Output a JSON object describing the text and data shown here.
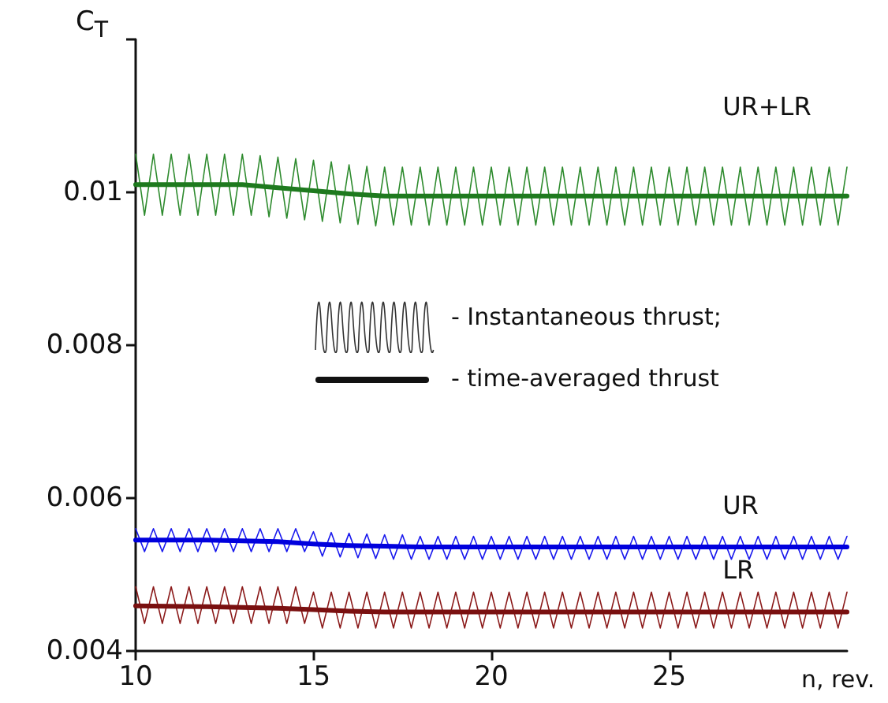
{
  "chart_data": {
    "type": "line",
    "xlabel": "n, rev.",
    "ylabel": "C$_{T}$",
    "xlim": [
      10,
      30
    ],
    "xticks": [
      10,
      15,
      20,
      25
    ],
    "ylim": [
      0.004,
      0.012
    ],
    "yticks": [
      0.004,
      0.006,
      0.008,
      0.01,
      {
        "value": 0.012,
        "label": null
      }
    ],
    "grid": false,
    "legend": false,
    "marker": "none",
    "line_style": "solid",
    "annotations": [
      "- Instantaneous thrust;",
      "- time-averaged thrust"
    ],
    "series": [
      {
        "name": "UR+LR",
        "color": "#2e8b2e",
        "x": [
          10,
          10.25,
          10.5,
          10.75,
          11,
          11.25,
          11.5,
          11.75,
          12,
          12.25,
          12.5,
          12.75,
          13,
          13.25,
          13.5,
          13.75,
          14,
          14.25,
          14.5,
          14.75,
          15,
          15.25,
          15.5,
          15.75,
          16,
          16.25,
          16.5,
          16.75,
          17,
          17.25,
          17.5,
          17.75,
          18,
          18.25,
          18.5,
          18.75,
          19,
          19.25,
          19.5,
          19.75,
          20,
          20.25,
          20.5,
          20.75,
          21,
          21.25,
          21.5,
          21.75,
          22,
          22.25,
          22.5,
          22.75,
          23,
          23.25,
          23.5,
          23.75,
          24,
          24.25,
          24.5,
          24.75,
          25,
          25.25,
          25.5,
          25.75,
          26,
          26.25,
          26.5,
          26.75,
          27,
          27.25,
          27.5,
          27.75,
          28,
          28.25,
          28.5,
          28.75,
          29,
          29.25,
          29.5,
          29.75,
          30
        ],
        "values": [
          0.0105,
          0.0097,
          0.0105,
          0.0097,
          0.0105,
          0.0097,
          0.0105,
          0.0097,
          0.0105,
          0.0097,
          0.0105,
          0.0097,
          0.0105,
          0.0097,
          0.01048,
          0.00968,
          0.01046,
          0.00966,
          0.01044,
          0.00964,
          0.01042,
          0.00962,
          0.0104,
          0.0096,
          0.01036,
          0.00958,
          0.01034,
          0.00956,
          0.01033,
          0.00957,
          0.01033,
          0.00957,
          0.01033,
          0.00957,
          0.01033,
          0.00957,
          0.01033,
          0.00957,
          0.01033,
          0.00957,
          0.01033,
          0.00957,
          0.01033,
          0.00957,
          0.01033,
          0.00957,
          0.01033,
          0.00957,
          0.01033,
          0.00957,
          0.01033,
          0.00957,
          0.01033,
          0.00957,
          0.01033,
          0.00957,
          0.01033,
          0.00957,
          0.01033,
          0.00957,
          0.01033,
          0.00957,
          0.01033,
          0.00957,
          0.01033,
          0.00957,
          0.01033,
          0.00957,
          0.01033,
          0.00957,
          0.01033,
          0.00957,
          0.01033,
          0.00957,
          0.01033,
          0.00957,
          0.01033,
          0.00957,
          0.01033,
          0.00957,
          0.01033
        ]
      },
      {
        "name": "UR",
        "color": "#1a1aee",
        "x": [
          10,
          10.25,
          10.5,
          10.75,
          11,
          11.25,
          11.5,
          11.75,
          12,
          12.25,
          12.5,
          12.75,
          13,
          13.25,
          13.5,
          13.75,
          14,
          14.25,
          14.5,
          14.75,
          15,
          15.25,
          15.5,
          15.75,
          16,
          16.25,
          16.5,
          16.75,
          17,
          17.25,
          17.5,
          17.75,
          18,
          18.25,
          18.5,
          18.75,
          19,
          19.25,
          19.5,
          19.75,
          20,
          20.25,
          20.5,
          20.75,
          21,
          21.25,
          21.5,
          21.75,
          22,
          22.25,
          22.5,
          22.75,
          23,
          23.25,
          23.5,
          23.75,
          24,
          24.25,
          24.5,
          24.75,
          25,
          25.25,
          25.5,
          25.75,
          26,
          26.25,
          26.5,
          26.75,
          27,
          27.25,
          27.5,
          27.75,
          28,
          28.25,
          28.5,
          28.75,
          29,
          29.25,
          29.5,
          29.75,
          30
        ],
        "values": [
          0.0056,
          0.0053,
          0.0056,
          0.0053,
          0.0056,
          0.0053,
          0.0056,
          0.0053,
          0.0056,
          0.0053,
          0.0056,
          0.0053,
          0.0056,
          0.0053,
          0.0056,
          0.0053,
          0.0056,
          0.0053,
          0.0056,
          0.0053,
          0.00556,
          0.00524,
          0.00555,
          0.00523,
          0.00554,
          0.00522,
          0.00553,
          0.00521,
          0.00552,
          0.0052,
          0.00552,
          0.0052,
          0.0055,
          0.0052,
          0.0055,
          0.0052,
          0.0055,
          0.0052,
          0.0055,
          0.0052,
          0.0055,
          0.0052,
          0.0055,
          0.0052,
          0.0055,
          0.0052,
          0.0055,
          0.0052,
          0.0055,
          0.0052,
          0.0055,
          0.0052,
          0.0055,
          0.0052,
          0.0055,
          0.0052,
          0.0055,
          0.0052,
          0.0055,
          0.0052,
          0.0055,
          0.0052,
          0.0055,
          0.0052,
          0.0055,
          0.0052,
          0.0055,
          0.0052,
          0.0055,
          0.0052,
          0.0055,
          0.0052,
          0.0055,
          0.0052,
          0.0055,
          0.0052,
          0.0055,
          0.0052,
          0.0055,
          0.0052,
          0.0055
        ]
      },
      {
        "name": "LR",
        "color": "#8b1a1a",
        "x": [
          10,
          10.25,
          10.5,
          10.75,
          11,
          11.25,
          11.5,
          11.75,
          12,
          12.25,
          12.5,
          12.75,
          13,
          13.25,
          13.5,
          13.75,
          14,
          14.25,
          14.5,
          14.75,
          15,
          15.25,
          15.5,
          15.75,
          16,
          16.25,
          16.5,
          16.75,
          17,
          17.25,
          17.5,
          17.75,
          18,
          18.25,
          18.5,
          18.75,
          19,
          19.25,
          19.5,
          19.75,
          20,
          20.25,
          20.5,
          20.75,
          21,
          21.25,
          21.5,
          21.75,
          22,
          22.25,
          22.5,
          22.75,
          23,
          23.25,
          23.5,
          23.75,
          24,
          24.25,
          24.5,
          24.75,
          25,
          25.25,
          25.5,
          25.75,
          26,
          26.25,
          26.5,
          26.75,
          27,
          27.25,
          27.5,
          27.75,
          28,
          28.25,
          28.5,
          28.75,
          29,
          29.25,
          29.5,
          29.75,
          30
        ],
        "values": [
          0.00484,
          0.00436,
          0.00484,
          0.00436,
          0.00484,
          0.00436,
          0.00484,
          0.00436,
          0.00484,
          0.00436,
          0.00484,
          0.00436,
          0.00484,
          0.00436,
          0.00484,
          0.00436,
          0.00484,
          0.00436,
          0.00484,
          0.00436,
          0.00477,
          0.0043,
          0.00477,
          0.0043,
          0.00477,
          0.0043,
          0.00477,
          0.0043,
          0.00477,
          0.0043,
          0.00477,
          0.0043,
          0.00477,
          0.0043,
          0.00477,
          0.0043,
          0.00477,
          0.0043,
          0.00477,
          0.0043,
          0.00477,
          0.0043,
          0.00477,
          0.0043,
          0.00477,
          0.0043,
          0.00477,
          0.0043,
          0.00477,
          0.0043,
          0.00477,
          0.0043,
          0.00477,
          0.0043,
          0.00477,
          0.0043,
          0.00477,
          0.0043,
          0.00477,
          0.0043,
          0.00477,
          0.0043,
          0.00477,
          0.0043,
          0.00477,
          0.0043,
          0.00477,
          0.0043,
          0.00477,
          0.0043,
          0.00477,
          0.0043,
          0.00477,
          0.0043,
          0.00477,
          0.0043,
          0.00477,
          0.0043,
          0.00477,
          0.0043,
          0.00477
        ]
      },
      {
        "color": "#1e7a1e",
        "x": [
          10,
          11,
          12,
          13,
          14,
          15,
          16,
          17,
          18,
          20,
          22,
          24,
          26,
          28,
          30
        ],
        "values": [
          0.0101,
          0.0101,
          0.0101,
          0.0101,
          0.01006,
          0.01002,
          0.00998,
          0.00995,
          0.00995,
          0.00995,
          0.00995,
          0.00995,
          0.00995,
          0.00995,
          0.00995
        ]
      },
      {
        "color": "#0000dd",
        "x": [
          10,
          12,
          14,
          15,
          16,
          17,
          18,
          20,
          22,
          24,
          26,
          28,
          30
        ],
        "values": [
          0.00545,
          0.00545,
          0.00543,
          0.0054,
          0.00538,
          0.00537,
          0.00536,
          0.00536,
          0.00536,
          0.00536,
          0.00536,
          0.00536,
          0.00536
        ]
      },
      {
        "color": "#7a1010",
        "x": [
          10,
          12,
          14,
          15,
          16,
          17,
          18,
          20,
          22,
          24,
          26,
          28,
          30
        ],
        "values": [
          0.00459,
          0.00458,
          0.00456,
          0.00454,
          0.00452,
          0.00451,
          0.00451,
          0.00451,
          0.00451,
          0.00451,
          0.00451,
          0.00451,
          0.00451
        ]
      }
    ]
  }
}
